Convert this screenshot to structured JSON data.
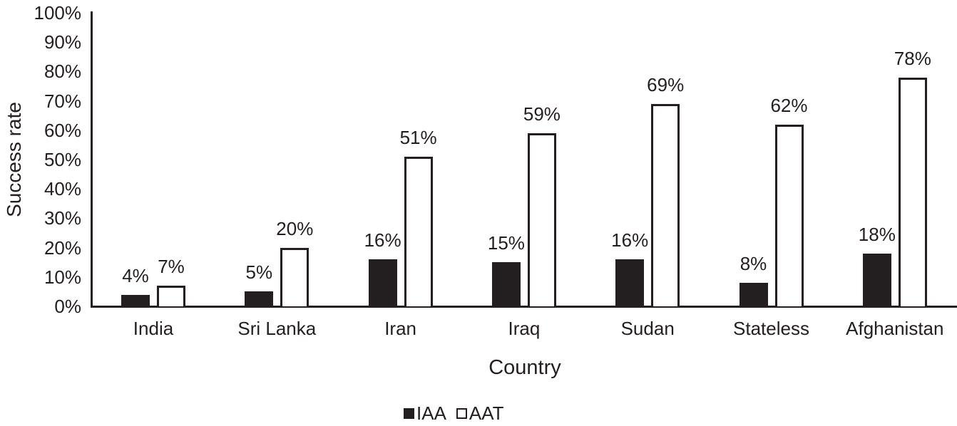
{
  "chart_data": {
    "type": "bar",
    "title": "",
    "xlabel": "Country",
    "ylabel": "Success rate",
    "ylim": [
      0,
      100
    ],
    "yticks": [
      "0%",
      "10%",
      "20%",
      "30%",
      "40%",
      "50%",
      "60%",
      "70%",
      "80%",
      "90%",
      "100%"
    ],
    "categories": [
      "India",
      "Sri Lanka",
      "Iran",
      "Iraq",
      "Sudan",
      "Stateless",
      "Afghanistan"
    ],
    "series": [
      {
        "name": "IAA",
        "color": "#231f20",
        "values": [
          4,
          5,
          16,
          15,
          16,
          8,
          18
        ],
        "labels": [
          "4%",
          "5%",
          "16%",
          "15%",
          "16%",
          "8%",
          "18%"
        ]
      },
      {
        "name": "AAT",
        "color": "#ffffff",
        "values": [
          7,
          20,
          51,
          59,
          69,
          62,
          78
        ],
        "labels": [
          "7%",
          "20%",
          "51%",
          "59%",
          "69%",
          "62%",
          "78%"
        ]
      }
    ],
    "grid": false,
    "legend_position": "bottom"
  },
  "legend": {
    "iaa": "IAA",
    "aat": "AAT"
  }
}
